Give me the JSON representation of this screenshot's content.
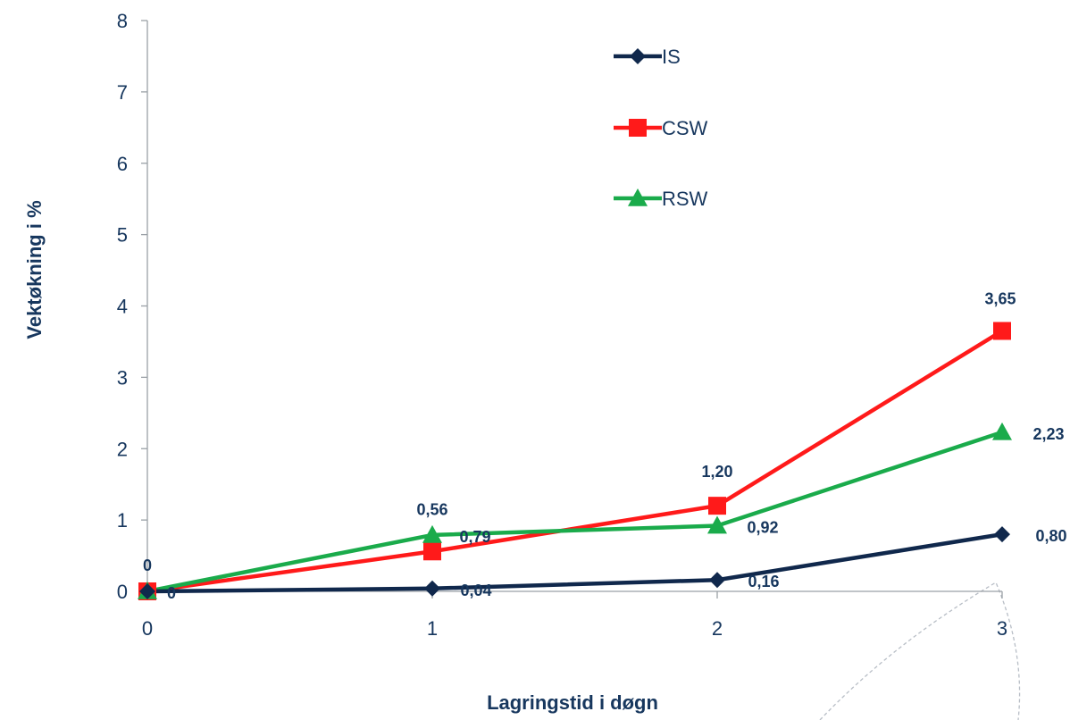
{
  "chart_data": {
    "type": "line",
    "title": "",
    "xlabel": "Lagringstid i døgn",
    "ylabel": "Vektøkning i %",
    "x": [
      0,
      1,
      2,
      3
    ],
    "x_tick_labels": [
      "0",
      "1",
      "2",
      "3"
    ],
    "xlim": [
      0,
      3
    ],
    "ylim": [
      0,
      8
    ],
    "y_ticks": [
      0,
      1,
      2,
      3,
      4,
      5,
      6,
      7,
      8
    ],
    "y_tick_labels": [
      "0",
      "1",
      "2",
      "3",
      "4",
      "5",
      "6",
      "7",
      "8"
    ],
    "grid": false,
    "legend_position": "top-center",
    "series": [
      {
        "name": "IS",
        "color": "#10284c",
        "marker": "diamond",
        "values": [
          0,
          0.04,
          0.16,
          0.8
        ],
        "labels": [
          "0",
          "0,04",
          "0,16",
          "0,80"
        ]
      },
      {
        "name": "CSW",
        "color": "#ff1a1a",
        "marker": "square",
        "values": [
          0,
          0.56,
          1.2,
          3.65
        ],
        "labels": [
          "0",
          "0,56",
          "1,20",
          "3,65"
        ]
      },
      {
        "name": "RSW",
        "color": "#1aab4b",
        "marker": "triangle",
        "values": [
          0,
          0.79,
          0.92,
          2.23
        ],
        "labels": [
          "",
          "0,79",
          "0,92",
          "2,23"
        ]
      }
    ]
  }
}
